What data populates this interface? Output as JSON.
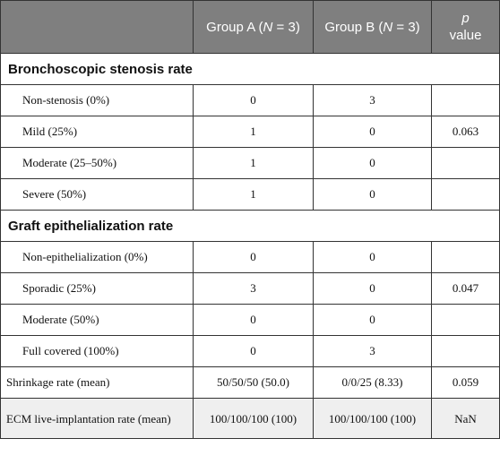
{
  "header": {
    "col0": "",
    "group_a": [
      "Group A (",
      "N",
      " = 3)"
    ],
    "group_b": [
      "Group B (",
      "N",
      " = 3)"
    ],
    "p_value": [
      "p",
      "value"
    ]
  },
  "sections": [
    {
      "title": "Bronchoscopic stenosis rate",
      "rows": [
        {
          "label": "Non-stenosis (0%)",
          "a": "0",
          "b": "3",
          "p": ""
        },
        {
          "label": "Mild (25%)",
          "a": "1",
          "b": "0",
          "p": "0.063"
        },
        {
          "label": "Moderate (25–50%)",
          "a": "1",
          "b": "0",
          "p": ""
        },
        {
          "label": "Severe (50%)",
          "a": "1",
          "b": "0",
          "p": ""
        }
      ]
    },
    {
      "title": "Graft epithelialization rate",
      "rows": [
        {
          "label": "Non-epithelialization (0%)",
          "a": "0",
          "b": "0",
          "p": ""
        },
        {
          "label": "Sporadic (25%)",
          "a": "3",
          "b": "0",
          "p": "0.047"
        },
        {
          "label": "Moderate (50%)",
          "a": "0",
          "b": "0",
          "p": ""
        },
        {
          "label": "Full covered (100%)",
          "a": "0",
          "b": "3",
          "p": ""
        }
      ]
    }
  ],
  "extra_rows": [
    {
      "label": "Shrinkage rate (mean)",
      "a": "50/50/50 (50.0)",
      "b": "0/0/25 (8.33)",
      "p": "0.059"
    },
    {
      "label": "ECM live-implantation rate (mean)",
      "a": "100/100/100 (100)",
      "b": "100/100/100 (100)",
      "p": "NaN"
    }
  ]
}
